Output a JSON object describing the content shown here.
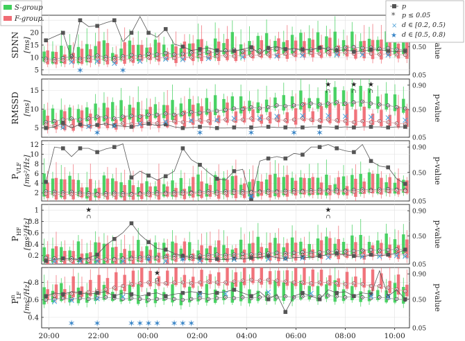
{
  "legend_left": {
    "items": [
      {
        "label": "S-group",
        "color": "#3fcf5a"
      },
      {
        "label": "F-group",
        "color": "#f06b74"
      }
    ]
  },
  "legend_right": {
    "items": [
      {
        "label": "p",
        "marker": "square",
        "color": "#555555"
      },
      {
        "label": "p ≤ 0.05",
        "marker": "asterisk",
        "color": "#444444"
      },
      {
        "label": "d ∈ [0.2, 0.5)",
        "marker": "x",
        "color": "#4a9fd8"
      },
      {
        "label": "d ∈ [0.5, 0.8)",
        "marker": "star",
        "color": "#3a86c8"
      }
    ]
  },
  "colors": {
    "s_group": "#3fcf5a",
    "f_group": "#f06b74",
    "p_line": "#555555",
    "median_line": "#444444",
    "effect": "#4aa3df",
    "grid": "#e0e0e0"
  },
  "chart_data": {
    "type": "box",
    "x_ticks": [
      "20:00",
      "22:00",
      "00:00",
      "02:00",
      "04:00",
      "06:00",
      "08:00",
      "10:00"
    ],
    "x_tick_hours": [
      20,
      22,
      24,
      26,
      28,
      30,
      32,
      34
    ],
    "x_range_hours": [
      19.7,
      34.6
    ],
    "right_axis": {
      "label": "p-value",
      "ticks": [
        "0.05",
        "0.50",
        "0.90"
      ]
    },
    "panels": [
      {
        "ylabel": "SDNN",
        "ylabel_unit": "[ms]",
        "yticks": [
          "5",
          "10",
          "15",
          "20",
          "25"
        ],
        "ylim": [
          3,
          27
        ],
        "p_values": [
          0.6,
          0.66,
          0.72,
          0.3,
          0.92,
          0.82,
          0.83,
          0.88,
          0.92,
          0.58,
          0.72,
          0.98,
          0.72,
          0.65,
          0.78,
          0.54,
          0.5,
          0.44,
          0.46,
          0.48,
          0.44,
          0.42,
          0.43,
          0.46,
          0.49,
          0.38,
          0.48,
          0.5,
          0.46,
          0.47,
          0.45,
          0.45,
          0.48,
          0.46,
          0.44,
          0.45,
          0.42,
          0.43,
          0.45,
          0.45,
          0.43,
          0.42,
          0.43
        ],
        "s_median": [
          9.5,
          9.2,
          9.8,
          10.5,
          9.5,
          10.2,
          10.8,
          10.2,
          9.8,
          10.5,
          11,
          10.5,
          11.5,
          11.2,
          11.8,
          11.2,
          11.5,
          12,
          11.8,
          12.2,
          12,
          12.8,
          13.2,
          12.5,
          13,
          12.8,
          13,
          13.5,
          13.2,
          13,
          13.5,
          13.2,
          14,
          13.5,
          13.8,
          14,
          14.2,
          13.8,
          14,
          13.5,
          13.8,
          13.2,
          13
        ],
        "f_median": [
          8.8,
          8.5,
          8.8,
          9.2,
          8.8,
          9,
          9.5,
          9.2,
          8.8,
          9.5,
          9.2,
          9.8,
          10,
          9.8,
          10,
          9.8,
          10.2,
          10,
          10.5,
          10.2,
          10.5,
          10.8,
          10.5,
          11,
          10.8,
          11,
          11.2,
          11,
          11.5,
          11.2,
          11.5,
          11.8,
          11.5,
          12,
          11.8,
          12,
          11.5,
          11.8,
          11.5,
          11.2,
          11.5,
          11.2,
          11
        ],
        "significant": [],
        "effect_x": [
          3,
          6,
          8,
          11,
          14,
          16,
          19,
          23,
          27,
          30,
          34,
          37,
          40
        ],
        "effect_star": [
          4,
          9
        ]
      },
      {
        "ylabel": "RMSSD",
        "ylabel_unit": "[ms]",
        "yticks": [
          "5",
          "10",
          "15"
        ],
        "ylim": [
          2.5,
          18
        ],
        "p_values": [
          0.2,
          0.22,
          0.28,
          0.2,
          0.26,
          0.23,
          0.25,
          0.27,
          0.24,
          0.23,
          0.22,
          0.25,
          0.27,
          0.24,
          0.26,
          0.22,
          0.2,
          0.21,
          0.22,
          0.22,
          0.2,
          0.2,
          0.21,
          0.2,
          0.21,
          0.22,
          0.22,
          0.21,
          0.21,
          0.2,
          0.21,
          0.22,
          0.22,
          0.22,
          0.21,
          0.22,
          0.21,
          0.22,
          0.22,
          0.22,
          0.21,
          0.22,
          0.22
        ],
        "s_median": [
          6.5,
          6.8,
          7.2,
          7.5,
          7.2,
          7.5,
          8,
          7.8,
          7.5,
          8,
          8.2,
          8,
          8.5,
          8.5,
          8.8,
          8.5,
          8.8,
          9.2,
          9,
          9.5,
          9.5,
          9.8,
          10.2,
          10,
          10.5,
          10.2,
          10.5,
          11,
          10.8,
          11,
          11.2,
          11.5,
          11.2,
          11.5,
          11.8,
          11.5,
          11.8,
          12,
          11.5,
          11.2,
          11,
          10.5,
          10.2
        ],
        "f_median": [
          5.8,
          5.5,
          5.2,
          5.5,
          5.8,
          5.5,
          5.8,
          6,
          5.8,
          6.2,
          6,
          6.2,
          6.5,
          6.2,
          6.5,
          6.8,
          6.5,
          6.8,
          7,
          6.8,
          7,
          7.2,
          7,
          7.2,
          7.5,
          7.2,
          7.5,
          7.2,
          7,
          7.2,
          7.5,
          7.2,
          7,
          7.2,
          7,
          6.8,
          6.5,
          6.8,
          6.5,
          6.8,
          6.5,
          6.2,
          6
        ],
        "significant": [
          33,
          36,
          38
        ],
        "effect_x": [
          2,
          5,
          8,
          11,
          14,
          17,
          20,
          22,
          25,
          27,
          30,
          33,
          35,
          38,
          40,
          42
        ],
        "effect_star": [
          6,
          18,
          24,
          29,
          32
        ]
      },
      {
        "ylabel": "P",
        "ylabel_sub": "VLF",
        "ylabel_unit": "[ms²/Hz]",
        "yticks": [
          "2",
          "4",
          "6",
          "8",
          "10",
          "12"
        ],
        "ylim": [
          0.3,
          12.8
        ],
        "p_values": [
          0.35,
          0.9,
          0.88,
          0.75,
          0.88,
          0.88,
          0.82,
          0.87,
          0.9,
          0.95,
          0.42,
          0.52,
          0.45,
          0.38,
          0.44,
          0.52,
          0.88,
          0.7,
          0.62,
          0.5,
          0.4,
          0.38,
          0.52,
          0.55,
          0.08,
          0.68,
          0.72,
          0.75,
          0.72,
          0.8,
          0.78,
          0.9,
          0.9,
          0.94,
          0.88,
          0.84,
          0.82,
          0.94,
          0.68,
          0.6,
          0.58,
          0.4,
          0.32
        ],
        "s_median": [
          2.3,
          2.2,
          2.1,
          2.2,
          2.0,
          1.9,
          1.8,
          1.9,
          2.0,
          1.9,
          1.8,
          1.9,
          2.0,
          2.1,
          2.0,
          2.1,
          2.2,
          2.1,
          2.2,
          2.3,
          2.2,
          2.3,
          2.4,
          2.3,
          2.2,
          2.3,
          2.4,
          2.3,
          2.4,
          2.5,
          2.4,
          2.5,
          2.6,
          2.5,
          2.6,
          2.5,
          2.6,
          2.7,
          2.6,
          2.7,
          2.8,
          2.7,
          2.6
        ],
        "f_median": [
          1.8,
          1.7,
          1.6,
          1.7,
          1.6,
          1.5,
          1.6,
          1.5,
          1.6,
          1.5,
          1.6,
          1.7,
          1.6,
          1.7,
          1.8,
          1.7,
          1.8,
          1.9,
          1.8,
          1.9,
          1.8,
          1.9,
          2.0,
          1.9,
          2.0,
          2.1,
          2.0,
          2.1,
          2.0,
          2.1,
          2.2,
          2.1,
          2.2,
          2.3,
          2.2,
          2.3,
          2.2,
          2.3,
          2.4,
          2.3,
          2.4,
          2.5,
          2.4
        ],
        "significant": [],
        "effect_x": [
          24
        ],
        "effect_star": [
          24
        ]
      },
      {
        "ylabel": "P",
        "ylabel_sub": "HF",
        "ylabel_unit": "[ms²/Hz]",
        "yticks": [
          "0.2",
          "0.4",
          "0.6",
          "0.8",
          "1"
        ],
        "ylim": [
          0.05,
          1.1
        ],
        "p_values": [
          0.1,
          0.12,
          0.14,
          0.13,
          0.12,
          0.15,
          0.2,
          0.35,
          0.45,
          0.55,
          0.7,
          0.52,
          0.4,
          0.3,
          0.28,
          0.22,
          0.18,
          0.15,
          0.14,
          0.12,
          0.13,
          0.12,
          0.14,
          0.13,
          0.15,
          0.16,
          0.18,
          0.15,
          0.14,
          0.15,
          0.16,
          0.15,
          0.18,
          0.2,
          0.22,
          0.2,
          0.18,
          0.16,
          0.2,
          0.18,
          0.2,
          0.22,
          0.28
        ],
        "s_median": [
          0.16,
          0.15,
          0.14,
          0.15,
          0.14,
          0.13,
          0.14,
          0.13,
          0.14,
          0.15,
          0.16,
          0.17,
          0.18,
          0.17,
          0.18,
          0.19,
          0.2,
          0.19,
          0.2,
          0.21,
          0.22,
          0.21,
          0.22,
          0.23,
          0.22,
          0.23,
          0.24,
          0.25,
          0.24,
          0.25,
          0.26,
          0.25,
          0.26,
          0.27,
          0.28,
          0.27,
          0.28,
          0.29,
          0.3,
          0.29,
          0.3,
          0.31,
          0.3
        ],
        "f_median": [
          0.12,
          0.11,
          0.12,
          0.11,
          0.12,
          0.11,
          0.12,
          0.13,
          0.12,
          0.13,
          0.14,
          0.13,
          0.14,
          0.15,
          0.14,
          0.15,
          0.16,
          0.15,
          0.16,
          0.17,
          0.16,
          0.17,
          0.18,
          0.17,
          0.18,
          0.19,
          0.18,
          0.19,
          0.2,
          0.19,
          0.2,
          0.21,
          0.2,
          0.21,
          0.22,
          0.21,
          0.22,
          0.21,
          0.22,
          0.23,
          0.22,
          0.23,
          0.22
        ],
        "significant": [
          5,
          33
        ],
        "effect_x": [
          1,
          4,
          6,
          9,
          14,
          18,
          22,
          26,
          28,
          30,
          33,
          37,
          39,
          41,
          42
        ],
        "effect_star": [
          12,
          16
        ]
      },
      {
        "ylabel": "P",
        "ylabel_sub": "LF",
        "ylabel_sup": "n",
        "ylabel_unit": "[ms²/Hz]",
        "yticks": [
          "0.4",
          "0.6",
          "0.8"
        ],
        "ylim": [
          0.28,
          0.97
        ],
        "p_values": [
          0.55,
          0.6,
          0.58,
          0.62,
          0.6,
          0.58,
          0.6,
          0.62,
          0.55,
          0.6,
          0.58,
          0.55,
          0.58,
          0.6,
          0.55,
          0.58,
          0.6,
          0.62,
          0.6,
          0.58,
          0.6,
          0.62,
          0.65,
          0.6,
          0.55,
          0.62,
          0.5,
          0.58,
          0.3,
          0.55,
          0.6,
          0.55,
          0.5,
          0.65,
          0.6,
          0.62,
          0.55,
          0.6,
          0.58,
          0.95,
          0.55,
          0.65,
          0.5
        ],
        "s_median": [
          0.6,
          0.61,
          0.62,
          0.61,
          0.62,
          0.61,
          0.62,
          0.63,
          0.62,
          0.61,
          0.62,
          0.61,
          0.6,
          0.61,
          0.62,
          0.61,
          0.6,
          0.61,
          0.62,
          0.61,
          0.62,
          0.63,
          0.62,
          0.63,
          0.62,
          0.63,
          0.64,
          0.63,
          0.64,
          0.63,
          0.64,
          0.65,
          0.64,
          0.65,
          0.64,
          0.63,
          0.64,
          0.63,
          0.62,
          0.63,
          0.62,
          0.61,
          0.6
        ],
        "f_median": [
          0.64,
          0.65,
          0.66,
          0.67,
          0.68,
          0.69,
          0.7,
          0.72,
          0.74,
          0.76,
          0.78,
          0.79,
          0.8,
          0.8,
          0.79,
          0.8,
          0.8,
          0.79,
          0.8,
          0.81,
          0.8,
          0.8,
          0.81,
          0.82,
          0.83,
          0.82,
          0.83,
          0.82,
          0.81,
          0.8,
          0.8,
          0.79,
          0.8,
          0.8,
          0.79,
          0.78,
          0.79,
          0.78,
          0.76,
          0.76,
          0.74,
          0.72,
          0.7
        ],
        "significant": [
          13
        ],
        "effect_x": [
          1,
          3,
          6,
          9,
          18,
          21,
          26,
          31,
          38,
          40
        ],
        "effect_star": [
          3,
          6,
          10,
          11,
          12,
          13,
          15,
          16,
          17
        ]
      }
    ]
  }
}
